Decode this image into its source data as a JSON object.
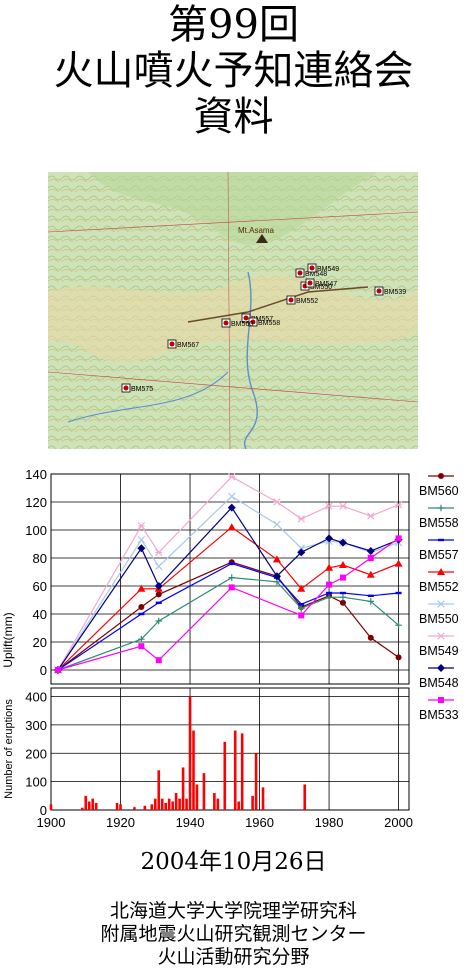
{
  "header": {
    "line1": "第99回",
    "line2": "火山噴火予知連絡会",
    "line3": "資料"
  },
  "map": {
    "volcano_label": "Mt.Asama",
    "benchmarks": [
      {
        "id": "BM548"
      },
      {
        "id": "BM549"
      },
      {
        "id": "BM550"
      },
      {
        "id": "BM552"
      },
      {
        "id": "BM557"
      },
      {
        "id": "BM558"
      },
      {
        "id": "BM560"
      },
      {
        "id": "BM567"
      },
      {
        "id": "BM575"
      },
      {
        "id": "BM539"
      },
      {
        "id": "BM547"
      }
    ]
  },
  "chart_data": [
    {
      "type": "line",
      "ylabel": "Uplift(mm)",
      "ylim": [
        -10,
        140
      ],
      "yticks": [
        0,
        20,
        40,
        60,
        80,
        100,
        120,
        140
      ],
      "xlim": [
        1900,
        2003
      ],
      "grid": true,
      "legend_position": "right",
      "series": [
        {
          "name": "BM560",
          "color": "#800000",
          "marker": "circle",
          "x": [
            1902,
            1926,
            1931,
            1952,
            1965,
            1972,
            1980,
            1984,
            1992,
            2000
          ],
          "y": [
            0,
            45,
            54,
            77,
            67,
            45,
            53,
            48,
            23,
            9
          ]
        },
        {
          "name": "BM558",
          "color": "#2e8b7a",
          "marker": "plus",
          "x": [
            1902,
            1926,
            1931,
            1952,
            1965,
            1972,
            1980,
            1984,
            1992,
            2000
          ],
          "y": [
            0,
            22,
            35,
            66,
            63,
            44,
            52,
            52,
            49,
            32
          ]
        },
        {
          "name": "BM557",
          "color": "#0000ff",
          "marker": "dash",
          "x": [
            1902,
            1926,
            1931,
            1952,
            1965,
            1972,
            1980,
            1984,
            1992,
            2000
          ],
          "y": [
            0,
            40,
            48,
            76,
            66,
            47,
            55,
            55,
            53,
            55
          ]
        },
        {
          "name": "BM552",
          "color": "#ff0000",
          "marker": "triangle",
          "x": [
            1902,
            1926,
            1931,
            1952,
            1965,
            1972,
            1980,
            1984,
            1992,
            2000
          ],
          "y": [
            0,
            58,
            58,
            102,
            79,
            58,
            73,
            75,
            68,
            76
          ]
        },
        {
          "name": "BM550",
          "color": "#a8c8f0",
          "marker": "x",
          "x": [
            1902,
            1926,
            1931,
            1952,
            1965,
            1972,
            1980,
            1984,
            1992,
            2000
          ],
          "y": [
            0,
            93,
            74,
            124,
            104,
            87,
            92,
            91,
            84,
            91
          ]
        },
        {
          "name": "BM549",
          "color": "#f4a8d0",
          "marker": "asterisk",
          "x": [
            1902,
            1926,
            1931,
            1952,
            1965,
            1972,
            1980,
            1984,
            1992,
            2000
          ],
          "y": [
            0,
            103,
            84,
            138,
            120,
            108,
            117,
            117,
            110,
            118
          ]
        },
        {
          "name": "BM548",
          "color": "#000080",
          "marker": "diamond",
          "x": [
            1902,
            1926,
            1931,
            1952,
            1965,
            1972,
            1980,
            1984,
            1992,
            2000
          ],
          "y": [
            0,
            87,
            60,
            116,
            67,
            84,
            94,
            91,
            85,
            93
          ]
        },
        {
          "name": "BM533",
          "color": "#ff00ff",
          "marker": "square",
          "x": [
            1902,
            1926,
            1931,
            1952,
            1972,
            1980,
            1984,
            1992,
            2000
          ],
          "y": [
            0,
            17,
            7,
            59,
            39,
            61,
            66,
            80,
            94
          ]
        }
      ]
    },
    {
      "type": "bar",
      "ylabel": "Number of eruptions",
      "ylim": [
        0,
        430
      ],
      "yticks": [
        0,
        100,
        200,
        300,
        400
      ],
      "xlim": [
        1900,
        2003
      ],
      "xticks": [
        1900,
        1920,
        1940,
        1960,
        1980,
        2000
      ],
      "color": "#ff0000",
      "x": [
        1900,
        1909,
        1910,
        1911,
        1912,
        1913,
        1919,
        1920,
        1924,
        1927,
        1929,
        1930,
        1931,
        1932,
        1933,
        1934,
        1935,
        1936,
        1937,
        1938,
        1939,
        1940,
        1941,
        1942,
        1944,
        1947,
        1948,
        1950,
        1953,
        1954,
        1955,
        1958,
        1959,
        1961,
        1973
      ],
      "values": [
        20,
        8,
        50,
        30,
        40,
        25,
        25,
        20,
        10,
        15,
        20,
        40,
        140,
        40,
        25,
        40,
        30,
        60,
        40,
        150,
        40,
        400,
        280,
        90,
        130,
        60,
        40,
        240,
        280,
        30,
        270,
        50,
        200,
        80,
        90
      ]
    }
  ],
  "date": "2004年10月26日",
  "footer": {
    "line1": "北海道大学大学院理学研究科",
    "line2": "附属地震火山研究観測センター",
    "line3": "火山活動研究分野"
  }
}
